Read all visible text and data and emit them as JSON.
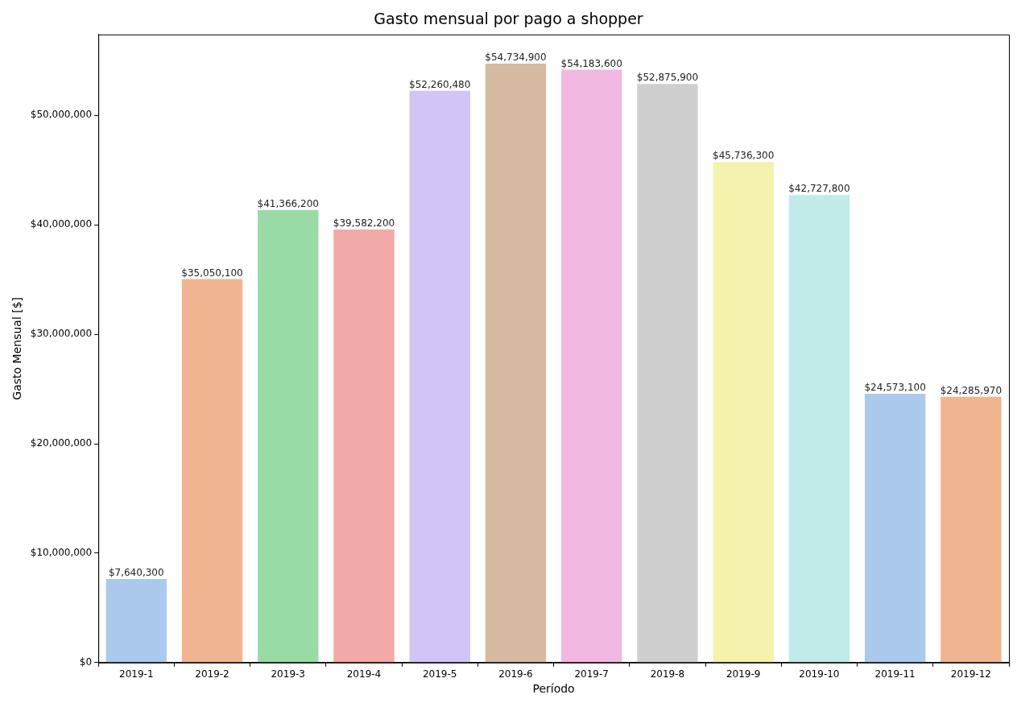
{
  "chart_data": {
    "type": "bar",
    "title": "Gasto mensual por pago a shopper",
    "xlabel": "Período",
    "ylabel": "Gasto Mensual [$]",
    "categories": [
      "2019-1",
      "2019-2",
      "2019-3",
      "2019-4",
      "2019-5",
      "2019-6",
      "2019-7",
      "2019-8",
      "2019-9",
      "2019-10",
      "2019-11",
      "2019-12"
    ],
    "values": [
      7640300,
      35050100,
      41366200,
      39582200,
      52260480,
      54734900,
      54183600,
      52875900,
      45736300,
      42727800,
      24573100,
      24285970
    ],
    "value_labels": [
      "$7,640,300",
      "$35,050,100",
      "$41,366,200",
      "$39,582,200",
      "$52,260,480",
      "$54,734,900",
      "$54,183,600",
      "$52,875,900",
      "$45,736,300",
      "$42,727,800",
      "$24,573,100",
      "$24,285,970"
    ],
    "colors": [
      "#abc9ed",
      "#f0b590",
      "#99dba6",
      "#f2aaa6",
      "#d2c4f6",
      "#d5b9a0",
      "#f1b8e1",
      "#cfcfcf",
      "#f4f2ad",
      "#c0ebe8",
      "#abc9ed",
      "#f0b590"
    ],
    "ylim": [
      0,
      57400000
    ],
    "yticks": [
      {
        "value": 0,
        "label": "$0"
      },
      {
        "value": 10000000,
        "label": "$10,000,000"
      },
      {
        "value": 20000000,
        "label": "$20,000,000"
      },
      {
        "value": 30000000,
        "label": "$30,000,000"
      },
      {
        "value": 40000000,
        "label": "$40,000,000"
      },
      {
        "value": 50000000,
        "label": "$50,000,000"
      }
    ],
    "grid": false,
    "legend": false
  }
}
